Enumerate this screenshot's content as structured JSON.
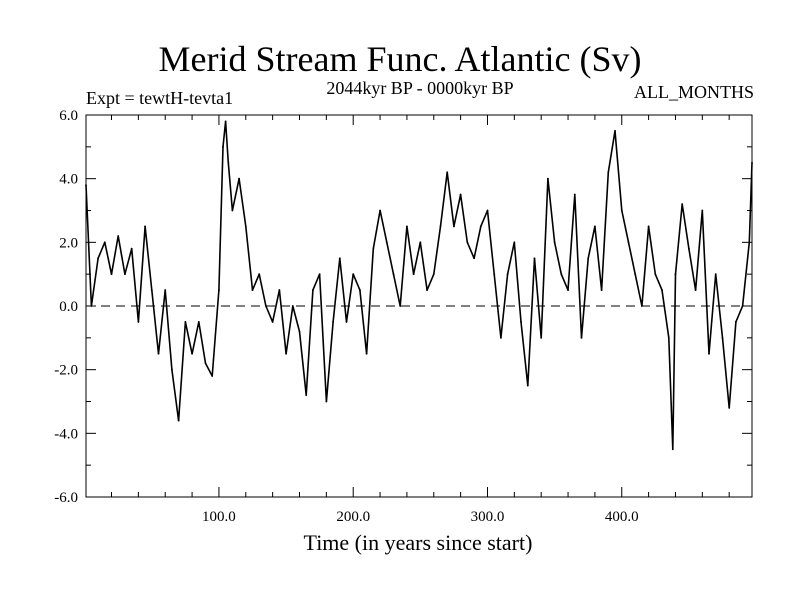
{
  "chart_data": {
    "type": "line",
    "title": "Merid Stream Func. Atlantic (Sv)",
    "expt_label": "Expt = tewtH-tevta1",
    "subtitle": "2044kyr BP - 0000kyr BP",
    "months_label": "ALL_MONTHS",
    "xlabel": "Time (in years since start)",
    "ylabel": "",
    "xlim": [
      1,
      497
    ],
    "ylim": [
      -6,
      6
    ],
    "x_ticks": [
      100,
      200,
      300,
      400
    ],
    "x_tick_labels": [
      "100.0",
      "200.0",
      "300.0",
      "400.0"
    ],
    "y_ticks": [
      -6,
      -4,
      -2,
      0,
      2,
      4,
      6
    ],
    "y_tick_labels": [
      "-6.0",
      "-4.0",
      "-2.0",
      "0.0",
      "2.0",
      "4.0",
      "6.0"
    ],
    "reference_line": 0,
    "series": [
      {
        "name": "Merid Stream Func. Atlantic",
        "color": "#000000",
        "x": [
          1,
          5,
          10,
          15,
          20,
          25,
          30,
          35,
          40,
          45,
          50,
          55,
          60,
          65,
          70,
          75,
          80,
          85,
          90,
          95,
          100,
          103,
          105,
          107,
          110,
          115,
          120,
          125,
          130,
          135,
          140,
          145,
          150,
          155,
          160,
          165,
          170,
          175,
          180,
          185,
          190,
          195,
          200,
          205,
          210,
          215,
          220,
          225,
          230,
          235,
          240,
          245,
          250,
          255,
          260,
          265,
          270,
          275,
          280,
          285,
          290,
          295,
          300,
          305,
          310,
          315,
          320,
          325,
          330,
          335,
          340,
          345,
          350,
          355,
          360,
          365,
          370,
          375,
          380,
          385,
          390,
          395,
          400,
          405,
          410,
          415,
          420,
          425,
          430,
          435,
          438,
          440,
          445,
          450,
          455,
          460,
          465,
          470,
          475,
          480,
          485,
          490,
          495,
          497
        ],
        "values": [
          3.8,
          0.0,
          1.5,
          2.0,
          1.0,
          2.2,
          1.0,
          1.8,
          -0.5,
          2.5,
          0.5,
          -1.5,
          0.5,
          -2.0,
          -3.6,
          -0.5,
          -1.5,
          -0.5,
          -1.8,
          -2.2,
          0.5,
          5.0,
          5.8,
          4.5,
          3.0,
          4.0,
          2.5,
          0.5,
          1.0,
          0.0,
          -0.5,
          0.5,
          -1.5,
          0.0,
          -0.8,
          -2.8,
          0.5,
          1.0,
          -3.0,
          -0.5,
          1.5,
          -0.5,
          1.0,
          0.5,
          -1.5,
          1.8,
          3.0,
          2.0,
          1.0,
          0.0,
          2.5,
          1.0,
          2.0,
          0.5,
          1.0,
          2.5,
          4.2,
          2.5,
          3.5,
          2.0,
          1.5,
          2.5,
          3.0,
          1.0,
          -1.0,
          1.0,
          2.0,
          -0.5,
          -2.5,
          1.5,
          -1.0,
          4.0,
          2.0,
          1.0,
          0.5,
          3.5,
          -1.0,
          1.5,
          2.5,
          0.5,
          4.2,
          5.5,
          3.0,
          2.0,
          1.0,
          0.0,
          2.5,
          1.0,
          0.5,
          -1.0,
          -4.5,
          1.0,
          3.2,
          1.8,
          0.5,
          3.0,
          -1.5,
          1.0,
          -1.0,
          -3.2,
          -0.5,
          0.0,
          2.0,
          4.5
        ]
      }
    ]
  }
}
